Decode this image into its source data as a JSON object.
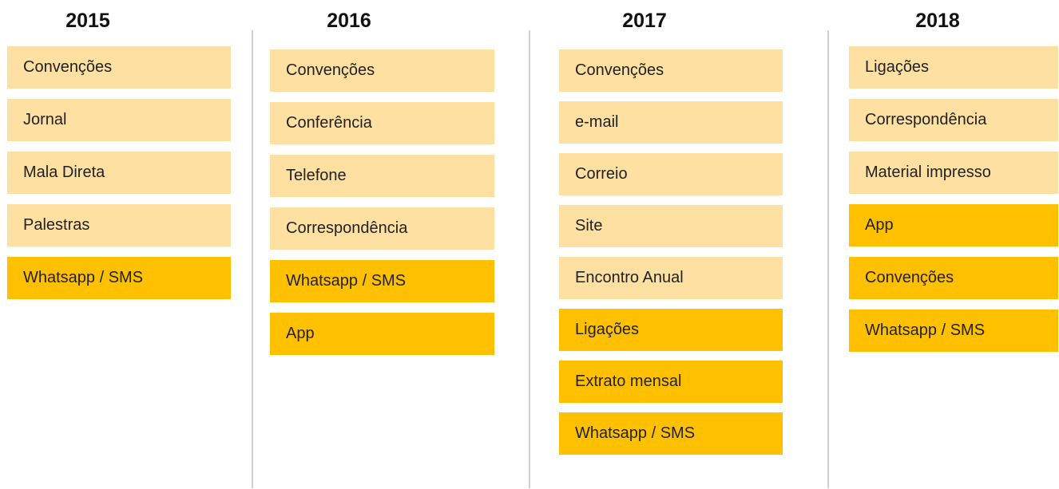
{
  "columns": [
    {
      "year": "2015",
      "items": [
        {
          "label": "Convenções",
          "color": "#fde0a2"
        },
        {
          "label": "Jornal",
          "color": "#fde0a2"
        },
        {
          "label": "Mala Direta",
          "color": "#fde0a2"
        },
        {
          "label": "Palestras",
          "color": "#fde0a2"
        },
        {
          "label": "Whatsapp / SMS",
          "color": "#ffc000"
        }
      ]
    },
    {
      "year": "2016",
      "items": [
        {
          "label": "Convenções",
          "color": "#fde0a2"
        },
        {
          "label": "Conferência",
          "color": "#fde0a2"
        },
        {
          "label": "Telefone",
          "color": "#fde0a2"
        },
        {
          "label": "Correspondência",
          "color": "#fde0a2"
        },
        {
          "label": "Whatsapp / SMS",
          "color": "#ffc000"
        },
        {
          "label": "App",
          "color": "#ffc000"
        }
      ]
    },
    {
      "year": "2017",
      "items": [
        {
          "label": "Convenções",
          "color": "#fde0a2"
        },
        {
          "label": "e-mail",
          "color": "#fde0a2"
        },
        {
          "label": "Correio",
          "color": "#fde0a2"
        },
        {
          "label": "Site",
          "color": "#fde0a2"
        },
        {
          "label": "Encontro Anual",
          "color": "#fde0a2"
        },
        {
          "label": "Ligações",
          "color": "#ffc000"
        },
        {
          "label": "Extrato mensal",
          "color": "#ffc000"
        },
        {
          "label": "Whatsapp / SMS",
          "color": "#ffc000"
        }
      ]
    },
    {
      "year": "2018",
      "items": [
        {
          "label": "Ligações",
          "color": "#fde0a2"
        },
        {
          "label": "Correspondência",
          "color": "#fde0a2"
        },
        {
          "label": "Material impresso",
          "color": "#fde0a2"
        },
        {
          "label": "App",
          "color": "#ffc000"
        },
        {
          "label": "Convenções",
          "color": "#ffc000"
        },
        {
          "label": "Whatsapp / SMS",
          "color": "#ffc000"
        }
      ]
    }
  ]
}
